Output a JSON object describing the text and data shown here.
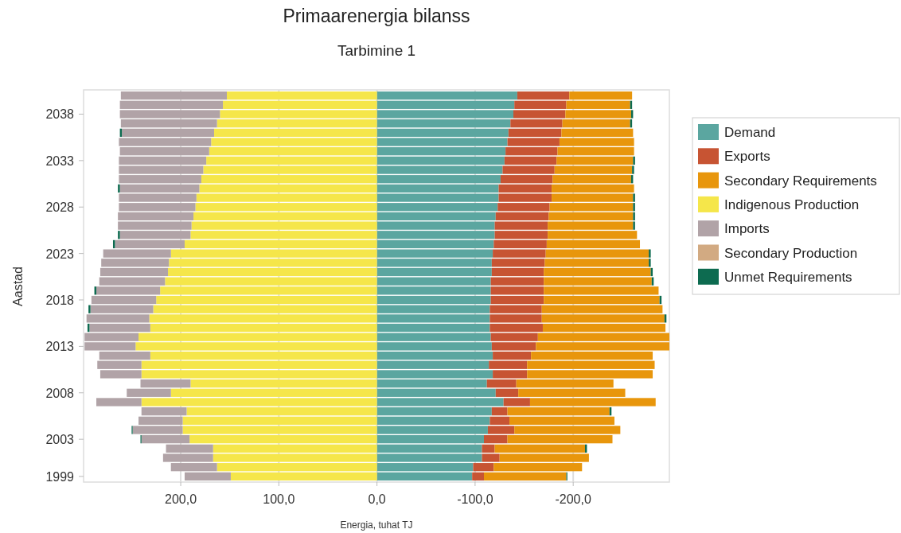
{
  "chart_data": {
    "type": "bar",
    "orientation": "horizontal",
    "stacked": true,
    "title": "Primaarenergia bilanss",
    "subtitle": "Tarbimine 1",
    "xlabel": "Energia, tuhat TJ",
    "ylabel": "Aastad",
    "categories": [
      null,
      null,
      "2038",
      null,
      null,
      null,
      null,
      "2033",
      null,
      null,
      null,
      null,
      "2028",
      null,
      null,
      null,
      null,
      "2023",
      null,
      null,
      null,
      null,
      "2018",
      null,
      null,
      null,
      null,
      "2013",
      null,
      null,
      null,
      null,
      "2008",
      null,
      null,
      null,
      null,
      "2003",
      null,
      null,
      null,
      "1999"
    ],
    "xlim": [
      299,
      -298
    ],
    "xticks": [
      {
        "value": 200,
        "label": "200,0"
      },
      {
        "value": 100,
        "label": "100,0"
      },
      {
        "value": 0,
        "label": "0,0"
      },
      {
        "value": -100,
        "label": "-100,0"
      },
      {
        "value": -200,
        "label": "-200,0"
      }
    ],
    "grid": "x",
    "legend": "right",
    "series": [
      {
        "name": "Demand",
        "color": "#5ba6a0",
        "values": [
          -143,
          -140,
          -139,
          -136,
          -134,
          -133,
          -131,
          -130,
          -128,
          -126,
          -124,
          -124,
          -123,
          -121,
          -120,
          -120,
          -119,
          -118,
          -117,
          -117,
          -116,
          -116,
          -116,
          -115,
          -115,
          -115,
          -116,
          -117,
          -118,
          -114,
          -118,
          -112,
          -121,
          -129,
          -117,
          -115,
          -113,
          -109,
          -107,
          -107,
          -98,
          -97
        ]
      },
      {
        "name": "Exports",
        "color": "#c75433",
        "values": [
          -53,
          -53,
          -53,
          -53,
          -54,
          -53,
          -53,
          -53,
          -53,
          -53,
          -54,
          -54,
          -53,
          -54,
          -54,
          -54,
          -54,
          -54,
          -54,
          -53,
          -54,
          -54,
          -54,
          -53,
          -53,
          -54,
          -48,
          -45,
          -39,
          -39,
          -35,
          -30,
          -23,
          -27,
          -16,
          -20,
          -27,
          -24,
          -13,
          -18,
          -21,
          -12
        ]
      },
      {
        "name": "Secondary Requirements",
        "color": "#e8960c",
        "values": [
          -64,
          -65,
          -67,
          -69,
          -73,
          -76,
          -78,
          -78,
          -79,
          -80,
          -84,
          -83,
          -85,
          -86,
          -87,
          -91,
          -95,
          -105,
          -106,
          -109,
          -110,
          -117,
          -118,
          -123,
          -125,
          -125,
          -134,
          -136,
          -124,
          -130,
          -128,
          -99,
          -109,
          -128,
          -104,
          -107,
          -108,
          -107,
          -92,
          -91,
          -90,
          -84
        ]
      },
      {
        "name": "Indigenous Production",
        "color": "#f5e64a",
        "values": [
          153,
          157,
          160,
          163,
          166,
          169,
          171,
          174,
          177,
          179,
          181,
          184,
          185,
          187,
          189,
          190,
          196,
          210,
          212,
          213,
          216,
          221,
          225,
          228,
          232,
          231,
          243,
          246,
          231,
          240,
          240,
          190,
          210,
          240,
          194,
          198,
          198,
          191,
          167,
          167,
          163,
          149
        ]
      },
      {
        "name": "Imports",
        "color": "#b1a3a7",
        "values": [
          108,
          105,
          102,
          98,
          94,
          94,
          91,
          89,
          86,
          84,
          81,
          79,
          78,
          77,
          75,
          72,
          71,
          69,
          69,
          69,
          67,
          65,
          66,
          64,
          64,
          62,
          55,
          52,
          52,
          45,
          42,
          51,
          45,
          46,
          46,
          45,
          51,
          49,
          48,
          51,
          47,
          47
        ]
      },
      {
        "name": "Secondary Production",
        "color": "#d2aa82",
        "values": [
          null,
          null,
          null,
          null,
          null,
          null,
          null,
          null,
          null,
          null,
          null,
          null,
          null,
          null,
          null,
          null,
          null,
          null,
          null,
          null,
          null,
          null,
          null,
          null,
          null,
          null,
          null,
          null,
          null,
          null,
          null,
          null,
          null,
          null,
          null,
          null,
          null,
          null,
          null,
          null,
          null,
          null
        ]
      },
      {
        "name": "Unmet Requirements",
        "color": "#0d6b50",
        "values": [
          null,
          -2,
          -2,
          -2,
          2,
          null,
          null,
          -2,
          -2,
          -2,
          2,
          -2,
          -2,
          -2,
          -2,
          2,
          2,
          -2,
          -2,
          -2,
          -2,
          2,
          -2,
          2,
          -2,
          2,
          null,
          null,
          null,
          null,
          null,
          null,
          null,
          null,
          -2,
          null,
          1,
          1,
          -2,
          null,
          null,
          -1
        ]
      }
    ]
  }
}
